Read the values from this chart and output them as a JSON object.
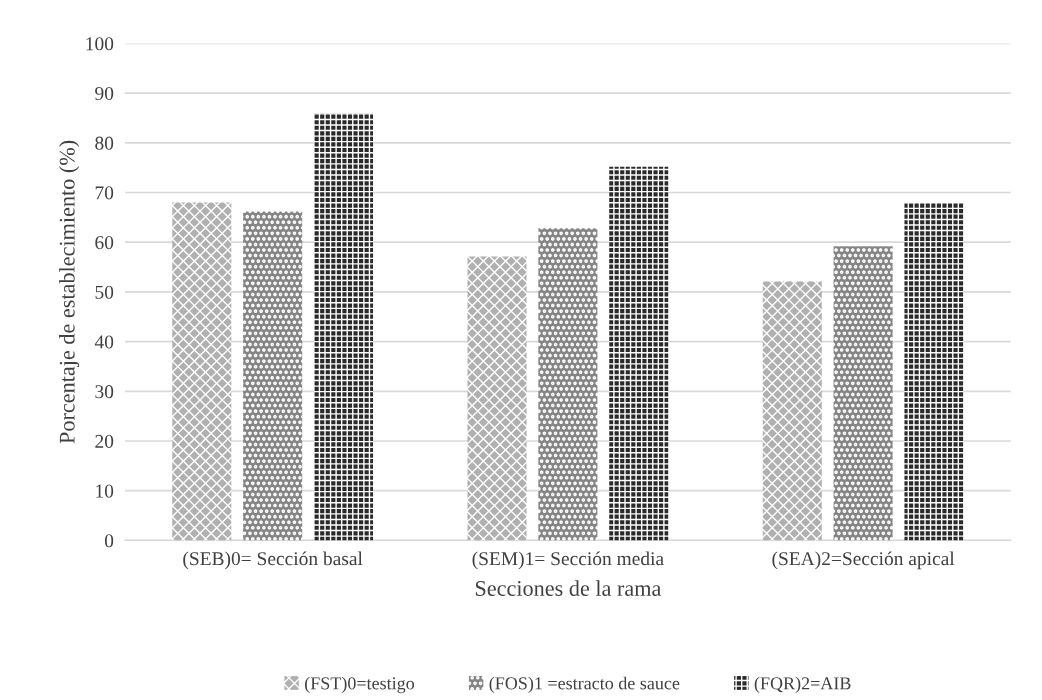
{
  "chart_data": {
    "type": "bar",
    "xlabel": "Secciones de la rama",
    "ylabel": "Porcentaje de establecimiento (%)",
    "categories": [
      "(SEB)0= Sección basal",
      "(SEM)1= Sección media",
      "(SEA)2=Sección apical"
    ],
    "series": [
      {
        "name": "(FST)0=testigo",
        "color": "#b0b0b0",
        "values": [
          68,
          57.1,
          52.1
        ]
      },
      {
        "name": "(FOS)1 =estracto de sauce",
        "color": "#858585",
        "values": [
          66.2,
          62.8,
          59.2
        ]
      },
      {
        "name": "(FQR)2=AIB",
        "color": "#2a2a2a",
        "values": [
          85.9,
          75.2,
          68
        ]
      }
    ],
    "ylim": [
      0,
      100
    ],
    "yticks": [
      0,
      10,
      20,
      30,
      40,
      50,
      60,
      70,
      80,
      90,
      100
    ],
    "grid": "y",
    "legend": "bottom"
  }
}
